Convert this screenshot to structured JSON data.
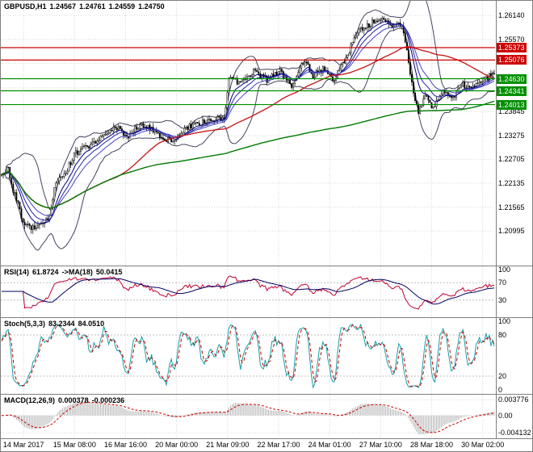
{
  "window": {
    "background": "#ffffff",
    "border_color": "#7f7f7f"
  },
  "main": {
    "title": {
      "symbol_period": "GBPUSD,H1",
      "open": "1.24567",
      "high": "1.24761",
      "low": "1.24559",
      "close": "1.24750"
    },
    "y_axis_labels": [
      {
        "text": "1.26140",
        "price": 1.2614
      },
      {
        "text": "1.25570",
        "price": 1.2557
      },
      {
        "text": "1.23845",
        "price": 1.23845
      },
      {
        "text": "1.23275",
        "price": 1.23275
      },
      {
        "text": "1.22705",
        "price": 1.22705
      },
      {
        "text": "1.22135",
        "price": 1.22135
      },
      {
        "text": "1.21565",
        "price": 1.21565
      },
      {
        "text": "1.20995",
        "price": 1.20995
      }
    ],
    "levels": [
      {
        "text": "1.25373",
        "price": 1.25373,
        "color": "#cc0000",
        "role": "resistance"
      },
      {
        "text": "1.25076",
        "price": 1.25076,
        "color": "#cc0000",
        "role": "resistance"
      },
      {
        "text": "1.24630",
        "price": 1.2463,
        "color": "#008f00",
        "role": "support"
      },
      {
        "text": "1.24341",
        "price": 1.24341,
        "color": "#008f00",
        "role": "support"
      },
      {
        "text": "1.24013",
        "price": 1.24013,
        "color": "#008f00",
        "role": "support"
      }
    ]
  },
  "panels": {
    "rsi": {
      "name": "RSI(14)",
      "value": "61.8724",
      "ma_name": "->MA(18)",
      "ma_value": "50.0415",
      "axis_labels": [
        {
          "text": "100",
          "value": 100
        },
        {
          "text": "70",
          "value": 70
        },
        {
          "text": "30",
          "value": 30
        }
      ],
      "level_values": [
        70,
        30
      ]
    },
    "stoch": {
      "name": "Stoch(5,3,3)",
      "value": "83.2344",
      "signal_value": "84.0510",
      "axis_labels": [
        {
          "text": "100",
          "value": 100
        },
        {
          "text": "80",
          "value": 80
        },
        {
          "text": "20",
          "value": 20
        },
        {
          "text": "0",
          "value": 0
        }
      ],
      "level_values": [
        80,
        20
      ]
    },
    "macd": {
      "name": "MACD(12,26,9)",
      "value": "0.000378",
      "signal_value": "-0.000236",
      "axis_labels": [
        {
          "text": "0.003776",
          "value": 0.003776
        },
        {
          "text": "0.00",
          "value": 0
        },
        {
          "text": "-0.004132",
          "value": -0.004132
        }
      ]
    }
  },
  "time_axis": {
    "labels": [
      "14 Mar 2017",
      "15 Mar 08:00",
      "16 Mar 16:00",
      "20 Mar 00:00",
      "21 Mar 09:00",
      "22 Mar 17:00",
      "24 Mar 01:00",
      "27 Mar 10:00",
      "28 Mar 18:00",
      "30 Mar 02:00"
    ]
  },
  "chart_data": {
    "type": "candlestick",
    "symbol": "GBPUSD",
    "timeframe": "H1",
    "title": "GBPUSD,H1",
    "ohlc_display": {
      "open": 1.24567,
      "high": 1.24761,
      "low": 1.24559,
      "close": 1.2475
    },
    "y_axis_range": [
      1.2017,
      1.2649
    ],
    "grid_prices": [
      1.2614,
      1.2557,
      1.25,
      1.24415,
      1.23845,
      1.23275,
      1.22705,
      1.22135,
      1.21565,
      1.20995
    ],
    "x_axis_labels": [
      "14 Mar 2017",
      "15 Mar 08:00",
      "16 Mar 16:00",
      "20 Mar 00:00",
      "21 Mar 09:00",
      "22 Mar 17:00",
      "24 Mar 01:00",
      "27 Mar 10:00",
      "28 Mar 18:00",
      "30 Mar 02:00"
    ],
    "candle_count": 300,
    "price_path_anchors": [
      [
        0.0,
        1.2232
      ],
      [
        0.012,
        1.2252
      ],
      [
        0.025,
        1.219
      ],
      [
        0.045,
        1.212
      ],
      [
        0.07,
        1.2103
      ],
      [
        0.095,
        1.2128
      ],
      [
        0.11,
        1.2215
      ],
      [
        0.13,
        1.224
      ],
      [
        0.15,
        1.2285
      ],
      [
        0.18,
        1.2305
      ],
      [
        0.21,
        1.233
      ],
      [
        0.24,
        1.235
      ],
      [
        0.255,
        1.232
      ],
      [
        0.28,
        1.2355
      ],
      [
        0.31,
        1.234
      ],
      [
        0.345,
        1.231
      ],
      [
        0.37,
        1.2345
      ],
      [
        0.4,
        1.2355
      ],
      [
        0.43,
        1.2365
      ],
      [
        0.452,
        1.2368
      ],
      [
        0.462,
        1.2475
      ],
      [
        0.48,
        1.245
      ],
      [
        0.51,
        1.248
      ],
      [
        0.54,
        1.246
      ],
      [
        0.565,
        1.248
      ],
      [
        0.59,
        1.2445
      ],
      [
        0.615,
        1.251
      ],
      [
        0.63,
        1.247
      ],
      [
        0.655,
        1.2488
      ],
      [
        0.675,
        1.246
      ],
      [
        0.7,
        1.2515
      ],
      [
        0.725,
        1.258
      ],
      [
        0.75,
        1.2595
      ],
      [
        0.77,
        1.261
      ],
      [
        0.79,
        1.2588
      ],
      [
        0.805,
        1.26
      ],
      [
        0.818,
        1.257
      ],
      [
        0.83,
        1.2465
      ],
      [
        0.845,
        1.2385
      ],
      [
        0.862,
        1.2425
      ],
      [
        0.875,
        1.2392
      ],
      [
        0.895,
        1.2432
      ],
      [
        0.915,
        1.2415
      ],
      [
        0.935,
        1.2448
      ],
      [
        0.955,
        1.2438
      ],
      [
        0.975,
        1.2458
      ],
      [
        1.0,
        1.2475
      ]
    ],
    "support_resistance": {
      "resistance": [
        1.25373,
        1.25076
      ],
      "support": [
        1.2463,
        1.24341,
        1.24013
      ]
    },
    "indicators": {
      "bollinger": {
        "period": 20,
        "deviation": 2
      },
      "ma_fast_periods": [
        9,
        14,
        21
      ],
      "ma_medium_period": 65,
      "ma_slow_period": 280,
      "rsi": {
        "period": 14,
        "value": 61.8724,
        "ma_period": 18,
        "ma_value": 50.0415,
        "levels": [
          70,
          30
        ],
        "range": [
          0,
          100
        ]
      },
      "stochastic": {
        "k": 5,
        "d": 3,
        "slowing": 3,
        "value": 83.2344,
        "signal": 84.051,
        "levels": [
          80,
          20
        ],
        "range": [
          0,
          100
        ]
      },
      "macd": {
        "fast": 12,
        "slow": 26,
        "signal_period": 9,
        "value": 0.000378,
        "signal_value": -0.000236,
        "axis_values": [
          0.003776,
          0.0,
          -0.004132
        ]
      }
    },
    "colors": {
      "candle_up": "#ffffff",
      "candle_down": "#000000",
      "candle_border": "#000000",
      "bollinger": "#44445e",
      "ma_fast": [
        "#000080",
        "#2222a6",
        "#4444c4"
      ],
      "ma_medium": "#c82020",
      "ma_slow": "#007a00",
      "resistance": "#cc0000",
      "support": "#008f00",
      "rsi_line": "#c00030",
      "rsi_ma": "#000060",
      "stoch_k": "#15a0a8",
      "stoch_d": "#cc0000",
      "macd_hist": "#b4b4b4",
      "macd_signal": "#cc0000",
      "grid": "#d6d6d6",
      "panel_levels": "#bdbdbd"
    }
  }
}
